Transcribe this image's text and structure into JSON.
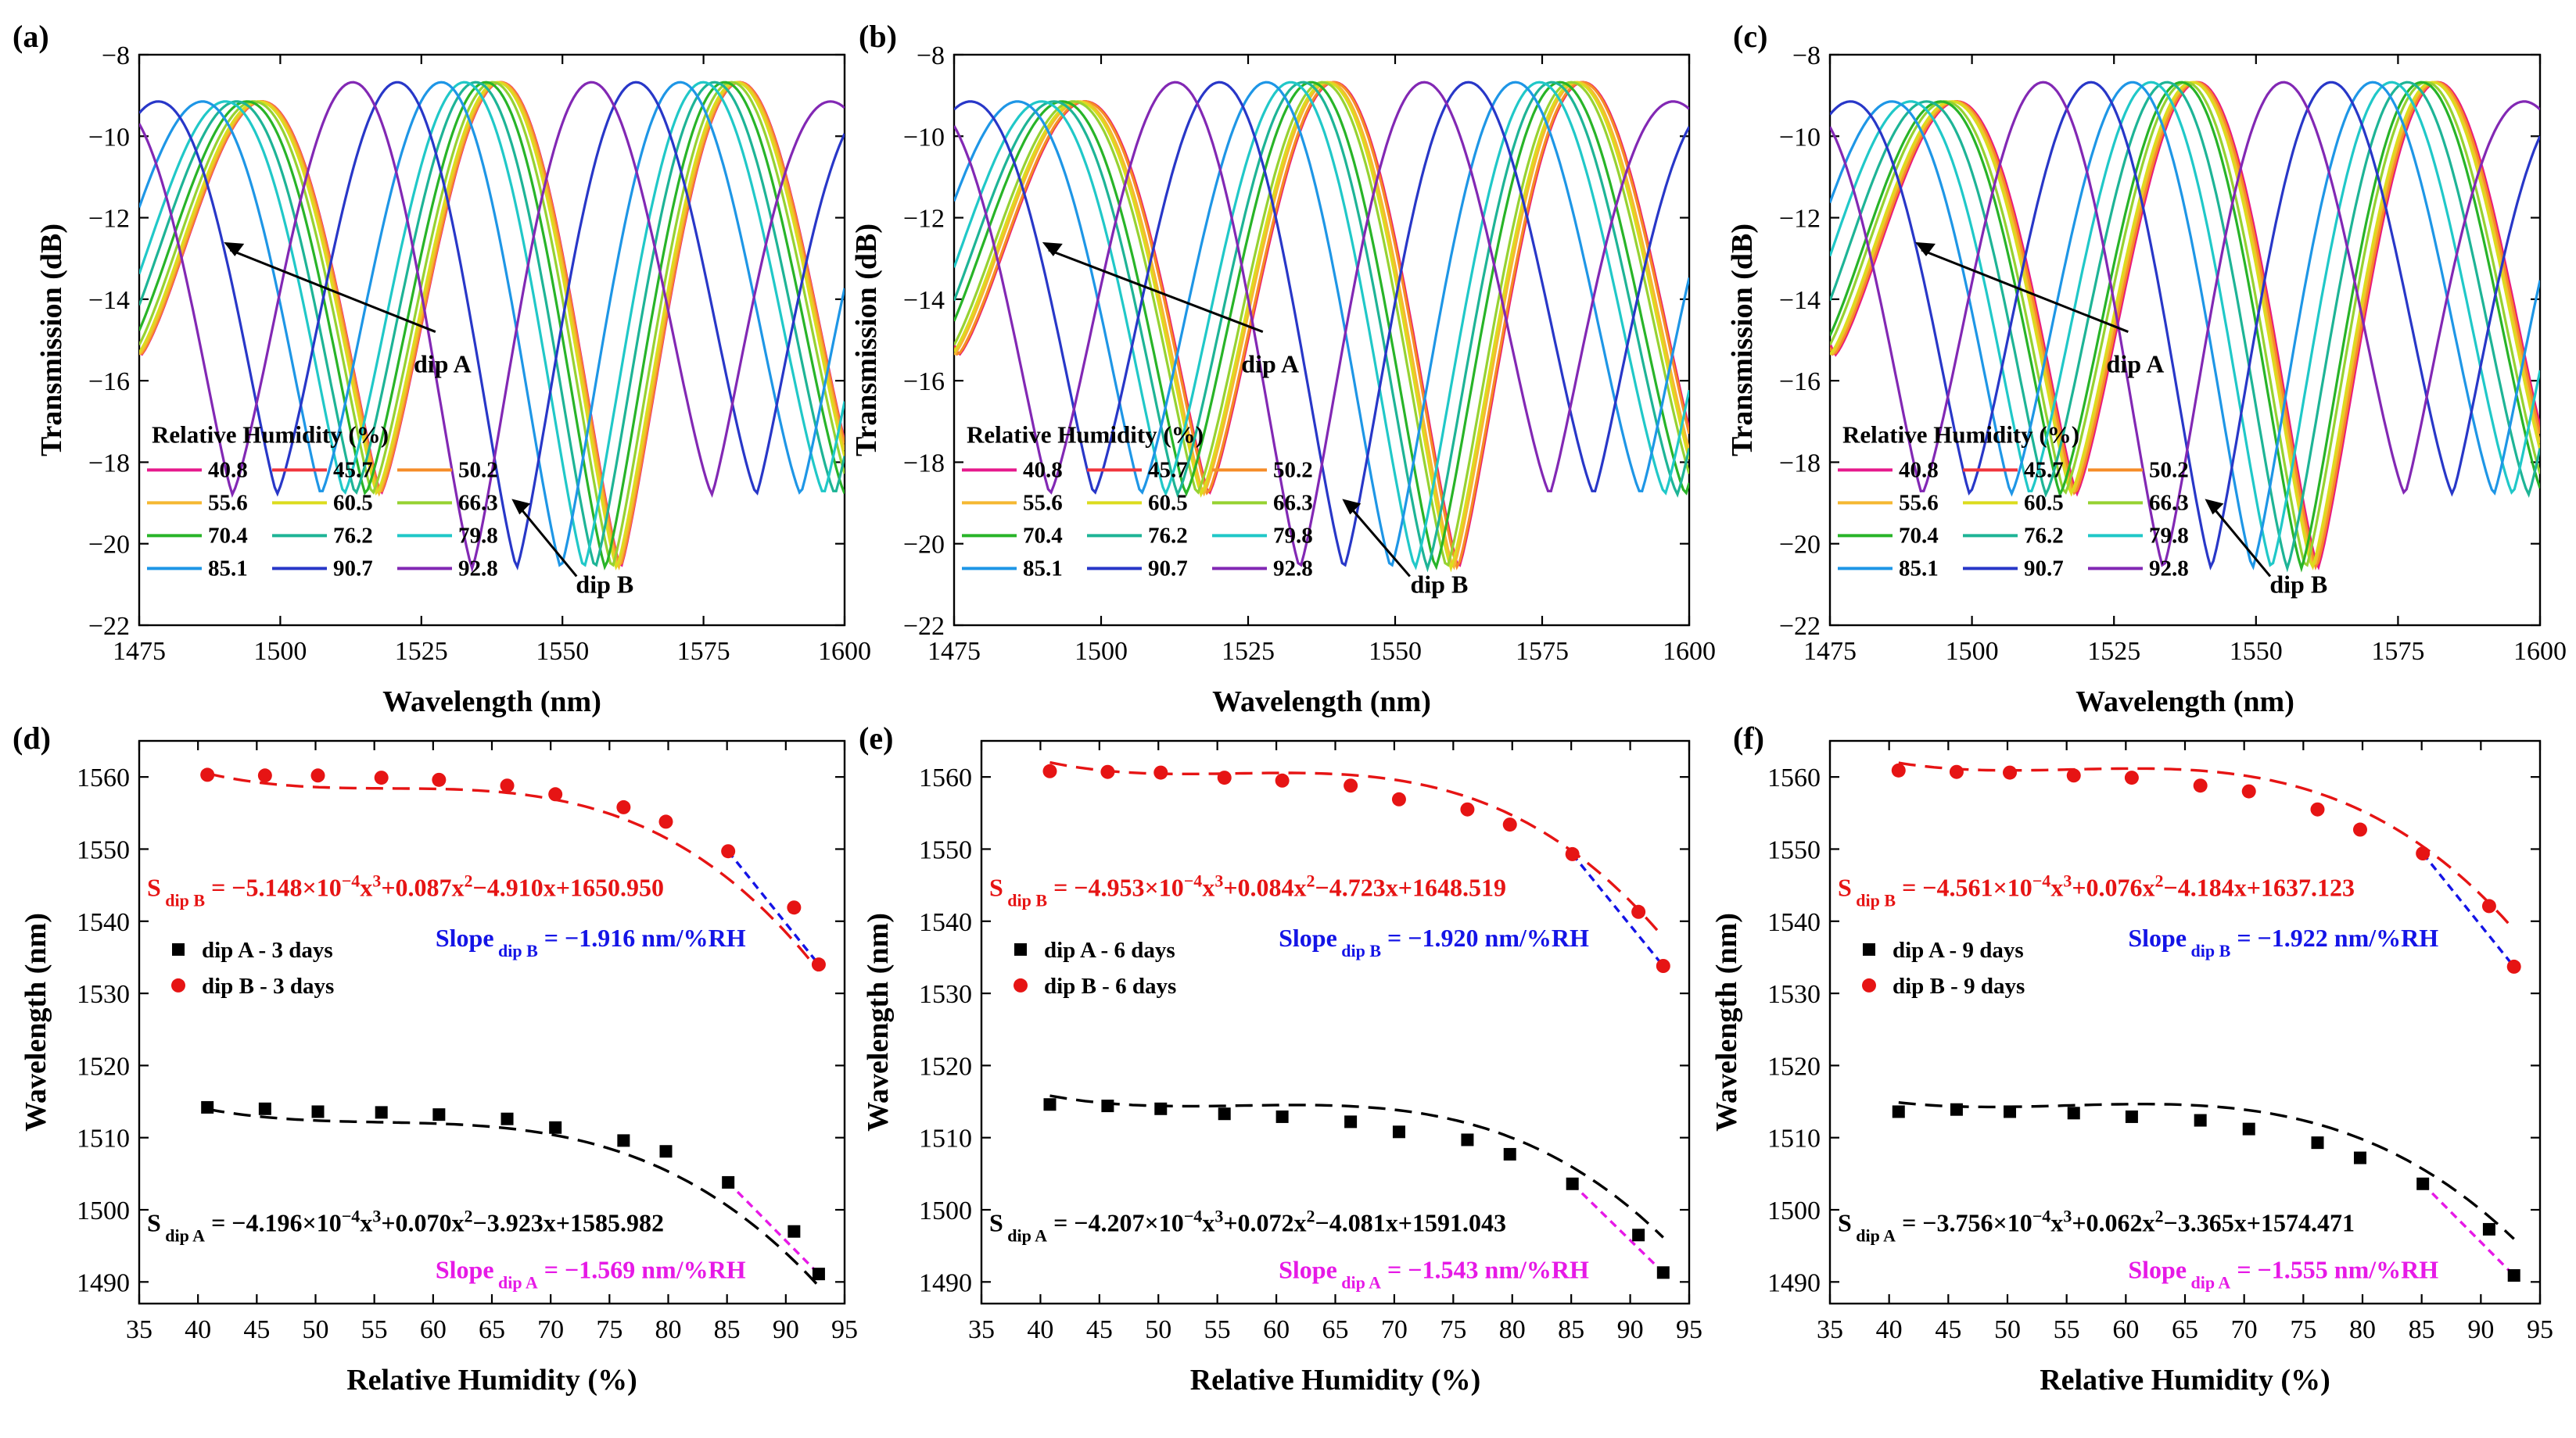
{
  "figure_panels": [
    {
      "id": "a",
      "label": "(a)"
    },
    {
      "id": "b",
      "label": "(b)"
    },
    {
      "id": "c",
      "label": "(c)"
    },
    {
      "id": "d",
      "label": "(d)"
    },
    {
      "id": "e",
      "label": "(e)"
    },
    {
      "id": "f",
      "label": "(f)"
    }
  ],
  "chart_data": [
    {
      "panel": "(a)",
      "type": "line",
      "xlabel": "Wavelength (nm)",
      "ylabel": "Transmission (dB)",
      "xlim": [
        1475,
        1600
      ],
      "ylim": [
        -22,
        -8
      ],
      "xticks": [
        1475,
        1500,
        1525,
        1550,
        1575,
        1600
      ],
      "yticks": [
        -22,
        -20,
        -18,
        -16,
        -14,
        -12,
        -10,
        -8
      ],
      "legend_title": "Relative Humidity (%)",
      "series": [
        {
          "name": "40.8",
          "color": "#e6198c",
          "dipA": 1514.2,
          "dipB": 1560.3
        },
        {
          "name": "45.7",
          "color": "#f0353c",
          "dipA": 1514.0,
          "dipB": 1560.2
        },
        {
          "name": "50.2",
          "color": "#f58c28",
          "dipA": 1513.6,
          "dipB": 1560.2
        },
        {
          "name": "55.6",
          "color": "#f5b832",
          "dipA": 1513.5,
          "dipB": 1559.9
        },
        {
          "name": "60.5",
          "color": "#dcdc1e",
          "dipA": 1513.2,
          "dipB": 1559.6
        },
        {
          "name": "66.3",
          "color": "#96d232",
          "dipA": 1512.6,
          "dipB": 1558.8
        },
        {
          "name": "70.4",
          "color": "#28b428",
          "dipA": 1511.4,
          "dipB": 1557.6
        },
        {
          "name": "76.2",
          "color": "#1eb496",
          "dipA": 1509.6,
          "dipB": 1555.8
        },
        {
          "name": "79.8",
          "color": "#20c8c8",
          "dipA": 1508.1,
          "dipB": 1553.8
        },
        {
          "name": "85.1",
          "color": "#1e96e6",
          "dipA": 1503.8,
          "dipB": 1549.7
        },
        {
          "name": "90.7",
          "color": "#2837c8",
          "dipA": 1497.0,
          "dipB": 1541.9
        },
        {
          "name": "92.8",
          "color": "#8228b4",
          "dipA": 1491.1,
          "dipB": 1534.0
        }
      ],
      "annotations": [
        {
          "text": "dip A"
        },
        {
          "text": "dip B"
        }
      ]
    },
    {
      "panel": "(b)",
      "type": "line",
      "xlabel": "Wavelength (nm)",
      "ylabel": "Transmission (dB)",
      "xlim": [
        1475,
        1600
      ],
      "ylim": [
        -22,
        -8
      ],
      "xticks": [
        1475,
        1500,
        1525,
        1550,
        1575,
        1600
      ],
      "yticks": [
        -22,
        -20,
        -18,
        -16,
        -14,
        -12,
        -10,
        -8
      ],
      "legend_title": "Relative Humidity (%)",
      "series": [
        {
          "name": "40.8",
          "color": "#e6198c",
          "dipA": 1514.6,
          "dipB": 1560.8
        },
        {
          "name": "45.7",
          "color": "#f0353c",
          "dipA": 1514.4,
          "dipB": 1560.7
        },
        {
          "name": "50.2",
          "color": "#f58c28",
          "dipA": 1514.0,
          "dipB": 1560.6
        },
        {
          "name": "55.6",
          "color": "#f5b832",
          "dipA": 1513.3,
          "dipB": 1559.9
        },
        {
          "name": "60.5",
          "color": "#dcdc1e",
          "dipA": 1512.9,
          "dipB": 1559.5
        },
        {
          "name": "66.3",
          "color": "#96d232",
          "dipA": 1512.2,
          "dipB": 1558.8
        },
        {
          "name": "70.4",
          "color": "#28b428",
          "dipA": 1510.8,
          "dipB": 1556.9
        },
        {
          "name": "76.2",
          "color": "#1eb496",
          "dipA": 1509.7,
          "dipB": 1555.5
        },
        {
          "name": "79.8",
          "color": "#20c8c8",
          "dipA": 1507.7,
          "dipB": 1553.4
        },
        {
          "name": "85.1",
          "color": "#1e96e6",
          "dipA": 1503.6,
          "dipB": 1549.3
        },
        {
          "name": "90.7",
          "color": "#2837c8",
          "dipA": 1496.5,
          "dipB": 1541.3
        },
        {
          "name": "92.8",
          "color": "#8228b4",
          "dipA": 1491.3,
          "dipB": 1533.8
        }
      ],
      "annotations": [
        {
          "text": "dip A"
        },
        {
          "text": "dip B"
        }
      ]
    },
    {
      "panel": "(c)",
      "type": "line",
      "xlabel": "Wavelength (nm)",
      "ylabel": "Transmission (dB)",
      "xlim": [
        1475,
        1600
      ],
      "ylim": [
        -22,
        -8
      ],
      "xticks": [
        1475,
        1500,
        1525,
        1550,
        1575,
        1600
      ],
      "yticks": [
        -22,
        -20,
        -18,
        -16,
        -14,
        -12,
        -10,
        -8
      ],
      "legend_title": "Relative Humidity (%)",
      "series": [
        {
          "name": "40.8",
          "color": "#e6198c",
          "dipA": 1513.6,
          "dipB": 1560.9
        },
        {
          "name": "45.7",
          "color": "#f0353c",
          "dipA": 1513.9,
          "dipB": 1560.7
        },
        {
          "name": "50.2",
          "color": "#f58c28",
          "dipA": 1513.6,
          "dipB": 1560.6
        },
        {
          "name": "55.6",
          "color": "#f5b832",
          "dipA": 1513.4,
          "dipB": 1560.2
        },
        {
          "name": "60.5",
          "color": "#dcdc1e",
          "dipA": 1512.9,
          "dipB": 1559.9
        },
        {
          "name": "66.3",
          "color": "#96d232",
          "dipA": 1512.4,
          "dipB": 1558.8
        },
        {
          "name": "70.4",
          "color": "#28b428",
          "dipA": 1511.2,
          "dipB": 1558.0
        },
        {
          "name": "76.2",
          "color": "#1eb496",
          "dipA": 1509.3,
          "dipB": 1555.5
        },
        {
          "name": "79.8",
          "color": "#20c8c8",
          "dipA": 1507.2,
          "dipB": 1552.7
        },
        {
          "name": "85.1",
          "color": "#1e96e6",
          "dipA": 1503.6,
          "dipB": 1549.4
        },
        {
          "name": "90.7",
          "color": "#2837c8",
          "dipA": 1497.3,
          "dipB": 1542.1
        },
        {
          "name": "92.8",
          "color": "#8228b4",
          "dipA": 1490.9,
          "dipB": 1533.7
        }
      ],
      "annotations": [
        {
          "text": "dip A"
        },
        {
          "text": "dip B"
        }
      ]
    },
    {
      "panel": "(d)",
      "type": "scatter",
      "xlabel": "Relative Humidity (%)",
      "ylabel": "Wavelength (nm)",
      "xlim": [
        35,
        95
      ],
      "ylim": [
        1487,
        1565
      ],
      "xticks": [
        35,
        40,
        45,
        50,
        55,
        60,
        65,
        70,
        75,
        80,
        85,
        90,
        95
      ],
      "yticks": [
        1490,
        1500,
        1510,
        1520,
        1530,
        1540,
        1550,
        1560
      ],
      "x": [
        40.8,
        45.7,
        50.2,
        55.6,
        60.5,
        66.3,
        70.4,
        76.2,
        79.8,
        85.1,
        90.7,
        92.8
      ],
      "series": [
        {
          "name": "dip A - 3 days",
          "marker": "square",
          "color": "#000000",
          "values": [
            1514.2,
            1514.0,
            1513.6,
            1513.5,
            1513.2,
            1512.6,
            1511.4,
            1509.6,
            1508.1,
            1503.8,
            1497.0,
            1491.1
          ],
          "fit": {
            "coeffs": [
              -0.0004196,
              0.07,
              -3.923,
              1585.982
            ],
            "text_main": "S",
            "text_sub": " dip A",
            "text_rest": " = −4.196×10",
            "text_exp": "−4",
            "text_tail": "x",
            "text_tail_exp": "3",
            "text_end": "+0.070x",
            "text_end_exp": "2",
            "text_final": "−3.923x+1585.982"
          },
          "slope": {
            "text_main": "Slope",
            "text_sub": " dip A",
            "text_rest": " = −1.569 nm/%RH",
            "color": "#e619e6",
            "value": -1.569
          }
        },
        {
          "name": "dip B - 3 days",
          "marker": "circle",
          "color": "#e61414",
          "values": [
            1560.3,
            1560.2,
            1560.2,
            1559.9,
            1559.6,
            1558.8,
            1557.6,
            1555.8,
            1553.8,
            1549.7,
            1541.9,
            1534.0
          ],
          "fit": {
            "coeffs": [
              -0.0005148,
              0.087,
              -4.91,
              1650.95
            ],
            "text_main": "S",
            "text_sub": " dip B",
            "text_rest": " = −5.148×10",
            "text_exp": "−4",
            "text_tail": "x",
            "text_tail_exp": "3",
            "text_end": "+0.087x",
            "text_end_exp": "2",
            "text_final": "−4.910x+1650.950"
          },
          "slope": {
            "text_main": "Slope",
            "text_sub": " dip B",
            "text_rest": " = −1.916 nm/%RH",
            "color": "#1414e6",
            "value": -1.916
          }
        }
      ]
    },
    {
      "panel": "(e)",
      "type": "scatter",
      "xlabel": "Relative Humidity (%)",
      "ylabel": "Wavelength (nm)",
      "xlim": [
        35,
        95
      ],
      "ylim": [
        1487,
        1565
      ],
      "xticks": [
        35,
        40,
        45,
        50,
        55,
        60,
        65,
        70,
        75,
        80,
        85,
        90,
        95
      ],
      "yticks": [
        1490,
        1500,
        1510,
        1520,
        1530,
        1540,
        1550,
        1560
      ],
      "x": [
        40.8,
        45.7,
        50.2,
        55.6,
        60.5,
        66.3,
        70.4,
        76.2,
        79.8,
        85.1,
        90.7,
        92.8
      ],
      "series": [
        {
          "name": "dip A - 6 days",
          "marker": "square",
          "color": "#000000",
          "values": [
            1514.6,
            1514.4,
            1514.0,
            1513.3,
            1512.9,
            1512.2,
            1510.8,
            1509.7,
            1507.7,
            1503.6,
            1496.5,
            1491.3
          ],
          "fit": {
            "coeffs": [
              -0.0004207,
              0.072,
              -4.081,
              1591.043
            ],
            "text_main": "S",
            "text_sub": " dip A",
            "text_rest": " = −4.207×10",
            "text_exp": "−4",
            "text_tail": "x",
            "text_tail_exp": "3",
            "text_end": "+0.072x",
            "text_end_exp": "2",
            "text_final": "−4.081x+1591.043"
          },
          "slope": {
            "text_main": "Slope",
            "text_sub": " dip A",
            "text_rest": " = −1.543 nm/%RH",
            "color": "#e619e6",
            "value": -1.543
          }
        },
        {
          "name": "dip B - 6 days",
          "marker": "circle",
          "color": "#e61414",
          "values": [
            1560.8,
            1560.7,
            1560.6,
            1559.9,
            1559.5,
            1558.8,
            1556.9,
            1555.5,
            1553.4,
            1549.3,
            1541.3,
            1533.8
          ],
          "fit": {
            "coeffs": [
              -0.0004953,
              0.084,
              -4.723,
              1648.519
            ],
            "text_main": "S",
            "text_sub": " dip B",
            "text_rest": " = −4.953×10",
            "text_exp": "−4",
            "text_tail": "x",
            "text_tail_exp": "3",
            "text_end": "+0.084x",
            "text_end_exp": "2",
            "text_final": "−4.723x+1648.519"
          },
          "slope": {
            "text_main": "Slope",
            "text_sub": " dip B",
            "text_rest": " = −1.920 nm/%RH",
            "color": "#1414e6",
            "value": -1.92
          }
        }
      ]
    },
    {
      "panel": "(f)",
      "type": "scatter",
      "xlabel": "Relative Humidity (%)",
      "ylabel": "Wavelength (nm)",
      "xlim": [
        35,
        95
      ],
      "ylim": [
        1487,
        1565
      ],
      "xticks": [
        35,
        40,
        45,
        50,
        55,
        60,
        65,
        70,
        75,
        80,
        85,
        90,
        95
      ],
      "yticks": [
        1490,
        1500,
        1510,
        1520,
        1530,
        1540,
        1550,
        1560
      ],
      "x": [
        40.8,
        45.7,
        50.2,
        55.6,
        60.5,
        66.3,
        70.4,
        76.2,
        79.8,
        85.1,
        90.7,
        92.8
      ],
      "series": [
        {
          "name": "dip A - 9 days",
          "marker": "square",
          "color": "#000000",
          "values": [
            1513.6,
            1513.9,
            1513.6,
            1513.4,
            1512.9,
            1512.4,
            1511.2,
            1509.3,
            1507.2,
            1503.6,
            1497.3,
            1490.9
          ],
          "fit": {
            "coeffs": [
              -0.0003756,
              0.062,
              -3.365,
              1574.471
            ],
            "text_main": "S",
            "text_sub": " dip A",
            "text_rest": " = −3.756×10",
            "text_exp": "−4",
            "text_tail": "x",
            "text_tail_exp": "3",
            "text_end": "+0.062x",
            "text_end_exp": "2",
            "text_final": "−3.365x+1574.471"
          },
          "slope": {
            "text_main": "Slope",
            "text_sub": " dip A",
            "text_rest": " = −1.555 nm/%RH",
            "color": "#e619e6",
            "value": -1.555
          }
        },
        {
          "name": "dip B - 9 days",
          "marker": "circle",
          "color": "#e61414",
          "values": [
            1560.9,
            1560.7,
            1560.6,
            1560.2,
            1559.9,
            1558.8,
            1558.0,
            1555.5,
            1552.7,
            1549.4,
            1542.1,
            1533.7
          ],
          "fit": {
            "coeffs": [
              -0.0004561,
              0.076,
              -4.184,
              1637.123
            ],
            "text_main": "S",
            "text_sub": " dip B",
            "text_rest": " = −4.561×10",
            "text_exp": "−4",
            "text_tail": "x",
            "text_tail_exp": "3",
            "text_end": "+0.076x",
            "text_end_exp": "2",
            "text_final": "−4.184x+1637.123"
          },
          "slope": {
            "text_main": "Slope",
            "text_sub": " dip B",
            "text_rest": " = −1.922 nm/%RH",
            "color": "#1414e6",
            "value": -1.922
          }
        }
      ]
    }
  ]
}
